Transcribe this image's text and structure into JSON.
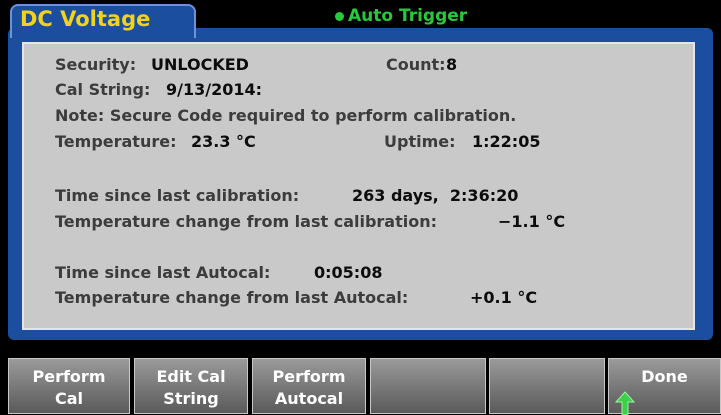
{
  "header": {
    "mode": "DC Voltage",
    "trigger": "Auto Trigger"
  },
  "popup": {
    "security": {
      "label": "Security:",
      "value": "UNLOCKED"
    },
    "count": {
      "label": "Count:",
      "value": "8"
    },
    "cal_string": {
      "label": "Cal String:",
      "value": "9/13/2014:"
    },
    "note": "Note: Secure Code required to perform calibration.",
    "temperature": {
      "label": "Temperature:",
      "value": "23.3 °C"
    },
    "uptime": {
      "label": "Uptime:",
      "value": "1:22:05"
    },
    "time_since_cal": {
      "label": "Time since last calibration:",
      "value": "263 days,  2:36:20"
    },
    "temp_change_cal": {
      "label": "Temperature change from last calibration:",
      "value": "−1.1 °C"
    },
    "time_since_autocal": {
      "label": "Time since last Autocal:",
      "value": "0:05:08"
    },
    "temp_change_autocal": {
      "label": "Temperature change from last Autocal:",
      "value": "+0.1 °C"
    }
  },
  "softkeys": [
    {
      "lines": [
        "Perform",
        "Cal"
      ]
    },
    {
      "lines": [
        "Edit Cal",
        "String"
      ]
    },
    {
      "lines": [
        "Perform",
        "Autocal"
      ]
    },
    {
      "lines": [
        "Done"
      ]
    }
  ]
}
